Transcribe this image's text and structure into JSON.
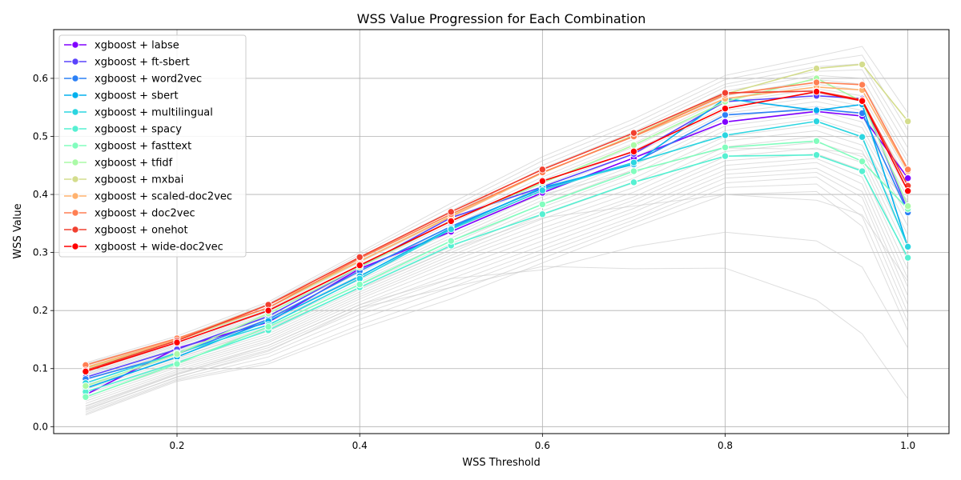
{
  "chart_data": {
    "type": "line",
    "title": "WSS Value Progression for Each Combination",
    "xlabel": "WSS Threshold",
    "ylabel": "WSS Value",
    "xlim": [
      0.065,
      1.045
    ],
    "ylim": [
      -0.012,
      0.684
    ],
    "x_ticks": [
      0.2,
      0.4,
      0.6,
      0.8,
      1.0
    ],
    "x_tick_labels": [
      "0.2",
      "0.4",
      "0.6",
      "0.8",
      "1.0"
    ],
    "y_ticks": [
      0.0,
      0.1,
      0.2,
      0.3,
      0.4,
      0.5,
      0.6
    ],
    "y_tick_labels": [
      "0.0",
      "0.1",
      "0.2",
      "0.3",
      "0.4",
      "0.5",
      "0.6"
    ],
    "grid": true,
    "legend_position": "upper-left",
    "x": [
      0.1,
      0.2,
      0.3,
      0.4,
      0.5,
      0.6,
      0.7,
      0.8,
      0.9,
      0.95,
      1.0
    ],
    "series": [
      {
        "name": "xgboost + labse",
        "color": "#8000ff",
        "values": [
          0.055,
          0.135,
          0.18,
          0.272,
          0.336,
          0.403,
          0.463,
          0.525,
          0.543,
          0.535,
          0.428
        ]
      },
      {
        "name": "xgboost + ft-sbert",
        "color": "#5a43fc",
        "values": [
          0.085,
          0.133,
          0.19,
          0.275,
          0.36,
          0.413,
          0.47,
          0.56,
          0.57,
          0.565,
          0.372
        ]
      },
      {
        "name": "xgboost + word2vec",
        "color": "#2c80f6",
        "values": [
          0.082,
          0.125,
          0.185,
          0.268,
          0.345,
          0.41,
          0.455,
          0.537,
          0.547,
          0.54,
          0.369
        ]
      },
      {
        "name": "xgboost + sbert",
        "color": "#03b0ed",
        "values": [
          0.066,
          0.12,
          0.182,
          0.259,
          0.342,
          0.412,
          0.452,
          0.565,
          0.545,
          0.555,
          0.309
        ]
      },
      {
        "name": "xgboost + multilingual",
        "color": "#2bd5e0",
        "values": [
          0.075,
          0.127,
          0.175,
          0.255,
          0.34,
          0.407,
          0.455,
          0.502,
          0.526,
          0.499,
          0.31
        ]
      },
      {
        "name": "xgboost + spacy",
        "color": "#56f0d2",
        "values": [
          0.06,
          0.11,
          0.166,
          0.24,
          0.312,
          0.366,
          0.421,
          0.466,
          0.468,
          0.44,
          0.291
        ]
      },
      {
        "name": "xgboost + fasttext",
        "color": "#82fdbe",
        "values": [
          0.051,
          0.108,
          0.172,
          0.245,
          0.32,
          0.383,
          0.44,
          0.481,
          0.492,
          0.457,
          0.375
        ]
      },
      {
        "name": "xgboost + tfidf",
        "color": "#aafaa6",
        "values": [
          0.07,
          0.125,
          0.195,
          0.275,
          0.355,
          0.42,
          0.485,
          0.56,
          0.6,
          0.56,
          0.38
        ]
      },
      {
        "name": "xgboost + mxbai",
        "color": "#d4dd8d",
        "values": [
          0.1,
          0.148,
          0.205,
          0.285,
          0.363,
          0.437,
          0.502,
          0.573,
          0.617,
          0.624,
          0.526
        ]
      },
      {
        "name": "xgboost + scaled-doc2vec",
        "color": "#ffb26f",
        "values": [
          0.102,
          0.15,
          0.21,
          0.285,
          0.362,
          0.438,
          0.5,
          0.565,
          0.585,
          0.58,
          0.44
        ]
      },
      {
        "name": "xgboost + doc2vec",
        "color": "#ff7f53",
        "values": [
          0.106,
          0.152,
          0.205,
          0.29,
          0.366,
          0.438,
          0.5,
          0.572,
          0.593,
          0.589,
          0.443
        ]
      },
      {
        "name": "xgboost + onehot",
        "color": "#f14030",
        "values": [
          0.097,
          0.148,
          0.21,
          0.292,
          0.37,
          0.443,
          0.506,
          0.575,
          0.578,
          0.563,
          0.415
        ]
      },
      {
        "name": "xgboost + wide-doc2vec",
        "color": "#ff0000",
        "values": [
          0.095,
          0.145,
          0.2,
          0.278,
          0.354,
          0.423,
          0.474,
          0.548,
          0.577,
          0.561,
          0.406
        ]
      }
    ],
    "background_series": [
      [
        0.11,
        0.156,
        0.215,
        0.3,
        0.385,
        0.465,
        0.53,
        0.605,
        0.638,
        0.655,
        0.54
      ],
      [
        0.108,
        0.152,
        0.212,
        0.296,
        0.378,
        0.458,
        0.522,
        0.598,
        0.628,
        0.64,
        0.51
      ],
      [
        0.105,
        0.15,
        0.21,
        0.292,
        0.372,
        0.45,
        0.515,
        0.59,
        0.62,
        0.625,
        0.495
      ],
      [
        0.102,
        0.148,
        0.206,
        0.288,
        0.366,
        0.445,
        0.508,
        0.585,
        0.612,
        0.615,
        0.48
      ],
      [
        0.098,
        0.145,
        0.202,
        0.283,
        0.36,
        0.438,
        0.5,
        0.578,
        0.605,
        0.6,
        0.465
      ],
      [
        0.095,
        0.142,
        0.198,
        0.278,
        0.355,
        0.43,
        0.495,
        0.57,
        0.598,
        0.59,
        0.455
      ],
      [
        0.092,
        0.14,
        0.195,
        0.274,
        0.35,
        0.425,
        0.488,
        0.565,
        0.59,
        0.58,
        0.445
      ],
      [
        0.09,
        0.138,
        0.192,
        0.27,
        0.345,
        0.42,
        0.482,
        0.558,
        0.582,
        0.57,
        0.435
      ],
      [
        0.088,
        0.135,
        0.188,
        0.265,
        0.34,
        0.415,
        0.476,
        0.552,
        0.575,
        0.56,
        0.425
      ],
      [
        0.085,
        0.132,
        0.185,
        0.261,
        0.335,
        0.408,
        0.47,
        0.545,
        0.568,
        0.552,
        0.415
      ],
      [
        0.082,
        0.13,
        0.182,
        0.257,
        0.33,
        0.402,
        0.463,
        0.54,
        0.56,
        0.545,
        0.405
      ],
      [
        0.08,
        0.128,
        0.18,
        0.253,
        0.325,
        0.396,
        0.456,
        0.532,
        0.552,
        0.535,
        0.395
      ],
      [
        0.076,
        0.125,
        0.176,
        0.249,
        0.32,
        0.39,
        0.45,
        0.525,
        0.545,
        0.525,
        0.385
      ],
      [
        0.072,
        0.122,
        0.172,
        0.244,
        0.315,
        0.384,
        0.443,
        0.518,
        0.538,
        0.515,
        0.372
      ],
      [
        0.068,
        0.118,
        0.168,
        0.24,
        0.31,
        0.378,
        0.436,
        0.51,
        0.53,
        0.505,
        0.36
      ],
      [
        0.064,
        0.115,
        0.164,
        0.236,
        0.305,
        0.372,
        0.428,
        0.5,
        0.52,
        0.495,
        0.345
      ],
      [
        0.06,
        0.112,
        0.16,
        0.232,
        0.3,
        0.365,
        0.42,
        0.492,
        0.51,
        0.485,
        0.33
      ],
      [
        0.056,
        0.108,
        0.156,
        0.228,
        0.295,
        0.358,
        0.412,
        0.482,
        0.5,
        0.475,
        0.315
      ],
      [
        0.052,
        0.105,
        0.152,
        0.224,
        0.29,
        0.35,
        0.404,
        0.474,
        0.49,
        0.465,
        0.3
      ],
      [
        0.048,
        0.102,
        0.148,
        0.22,
        0.285,
        0.342,
        0.396,
        0.465,
        0.48,
        0.455,
        0.285
      ],
      [
        0.044,
        0.098,
        0.145,
        0.215,
        0.278,
        0.335,
        0.39,
        0.458,
        0.47,
        0.442,
        0.27
      ],
      [
        0.04,
        0.095,
        0.14,
        0.21,
        0.27,
        0.328,
        0.384,
        0.45,
        0.462,
        0.43,
        0.255
      ],
      [
        0.036,
        0.092,
        0.136,
        0.205,
        0.262,
        0.32,
        0.376,
        0.442,
        0.455,
        0.418,
        0.24
      ],
      [
        0.032,
        0.09,
        0.132,
        0.2,
        0.255,
        0.312,
        0.37,
        0.435,
        0.445,
        0.405,
        0.225
      ],
      [
        0.028,
        0.086,
        0.126,
        0.193,
        0.247,
        0.305,
        0.362,
        0.428,
        0.438,
        0.395,
        0.21
      ],
      [
        0.025,
        0.082,
        0.12,
        0.185,
        0.24,
        0.298,
        0.356,
        0.42,
        0.43,
        0.38,
        0.195
      ],
      [
        0.022,
        0.08,
        0.112,
        0.175,
        0.23,
        0.29,
        0.35,
        0.412,
        0.418,
        0.362,
        0.18
      ],
      [
        0.02,
        0.078,
        0.108,
        0.168,
        0.22,
        0.282,
        0.343,
        0.4,
        0.405,
        0.345,
        0.165
      ],
      [
        0.03,
        0.085,
        0.13,
        0.205,
        0.24,
        0.276,
        0.272,
        0.273,
        0.218,
        0.16,
        0.048
      ],
      [
        0.035,
        0.09,
        0.14,
        0.21,
        0.255,
        0.27,
        0.31,
        0.335,
        0.32,
        0.275,
        0.135
      ],
      [
        0.07,
        0.118,
        0.17,
        0.238,
        0.305,
        0.36,
        0.38,
        0.4,
        0.39,
        0.365,
        0.25
      ],
      [
        0.1,
        0.15,
        0.2,
        0.27,
        0.34,
        0.4,
        0.44,
        0.48,
        0.478,
        0.47,
        0.39
      ]
    ]
  }
}
